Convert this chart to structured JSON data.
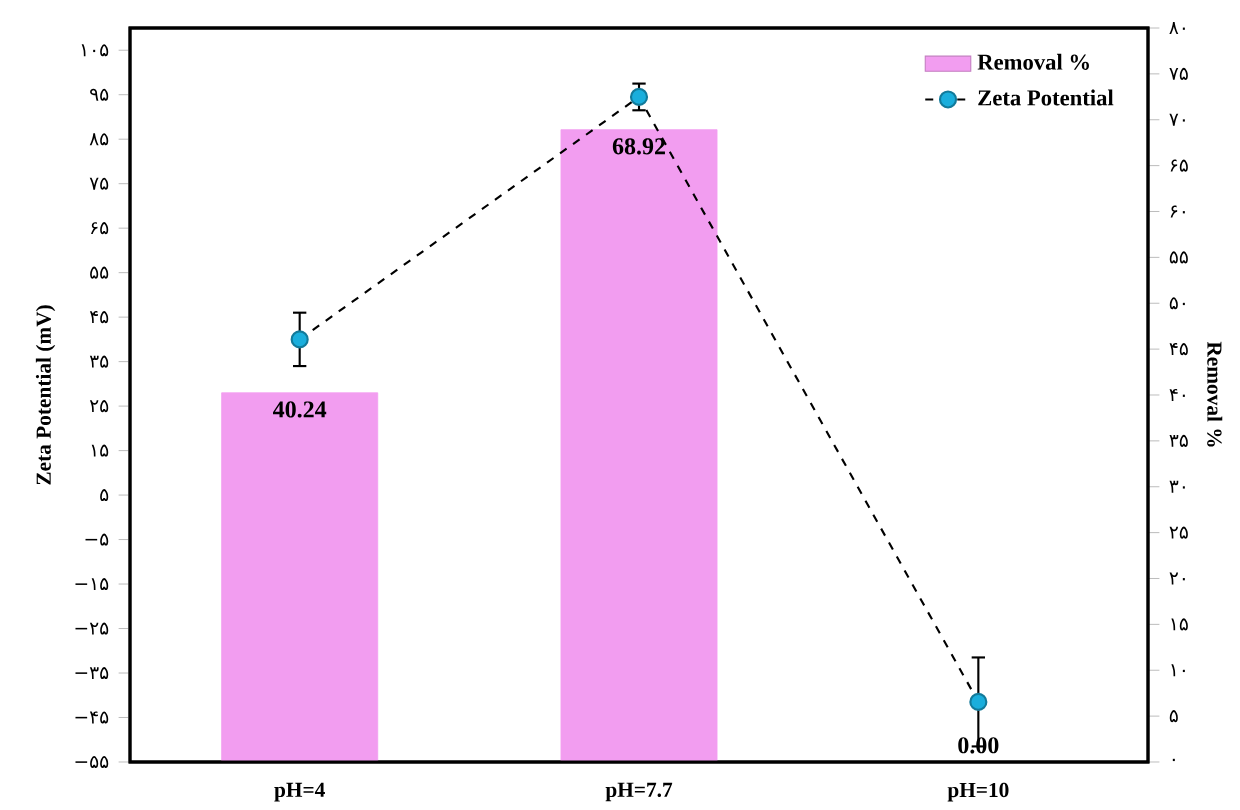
{
  "chart_data": {
    "type": "bar",
    "categories": [
      "pH=4",
      "pH=7.7",
      "pH=10"
    ],
    "ylabel": "Zeta Potential (mV)",
    "y2label": "Removal %",
    "ylim": [
      -55,
      110
    ],
    "yticks": [
      {
        "value": -55,
        "label": "−۵۵"
      },
      {
        "value": -45,
        "label": "−۴۵"
      },
      {
        "value": -35,
        "label": "−۳۵"
      },
      {
        "value": -25,
        "label": "−۲۵"
      },
      {
        "value": -15,
        "label": "−۱۵"
      },
      {
        "value": -5,
        "label": "−۵"
      },
      {
        "value": 5,
        "label": "۵"
      },
      {
        "value": 15,
        "label": "۱۵"
      },
      {
        "value": 25,
        "label": "۲۵"
      },
      {
        "value": 35,
        "label": "۳۵"
      },
      {
        "value": 45,
        "label": "۴۵"
      },
      {
        "value": 55,
        "label": "۵۵"
      },
      {
        "value": 65,
        "label": "۶۵"
      },
      {
        "value": 75,
        "label": "۷۵"
      },
      {
        "value": 85,
        "label": "۸۵"
      },
      {
        "value": 95,
        "label": "۹۵"
      },
      {
        "value": 105,
        "label": "۱۰۵"
      }
    ],
    "y2lim": [
      0,
      80
    ],
    "y2ticks": [
      {
        "value": 0,
        "label": "۰"
      },
      {
        "value": 5,
        "label": "۵"
      },
      {
        "value": 10,
        "label": "۱۰"
      },
      {
        "value": 15,
        "label": "۱۵"
      },
      {
        "value": 20,
        "label": "۲۰"
      },
      {
        "value": 25,
        "label": "۲۵"
      },
      {
        "value": 30,
        "label": "۳۰"
      },
      {
        "value": 35,
        "label": "۳۵"
      },
      {
        "value": 40,
        "label": "۴۰"
      },
      {
        "value": 45,
        "label": "۴۵"
      },
      {
        "value": 50,
        "label": "۵۰"
      },
      {
        "value": 55,
        "label": "۵۵"
      },
      {
        "value": 60,
        "label": "۶۰"
      },
      {
        "value": 65,
        "label": "۶۵"
      },
      {
        "value": 70,
        "label": "۷۰"
      },
      {
        "value": 75,
        "label": "۷۵"
      },
      {
        "value": 80,
        "label": "۸۰"
      }
    ],
    "legend": "top right",
    "marker": "circle",
    "line_style": "dashed",
    "series": [
      {
        "name": "Removal %",
        "axis": "y2",
        "color": "#f29df0",
        "values": [
          40.24,
          68.92,
          0
        ],
        "value_labels": [
          "40.24",
          "68.92",
          "0.00"
        ]
      },
      {
        "name": "Zeta Potential",
        "type": "line",
        "color": "#1aaedc",
        "values": [
          40,
          94.5,
          -41.5
        ],
        "errors": [
          6,
          3,
          10
        ]
      }
    ]
  }
}
